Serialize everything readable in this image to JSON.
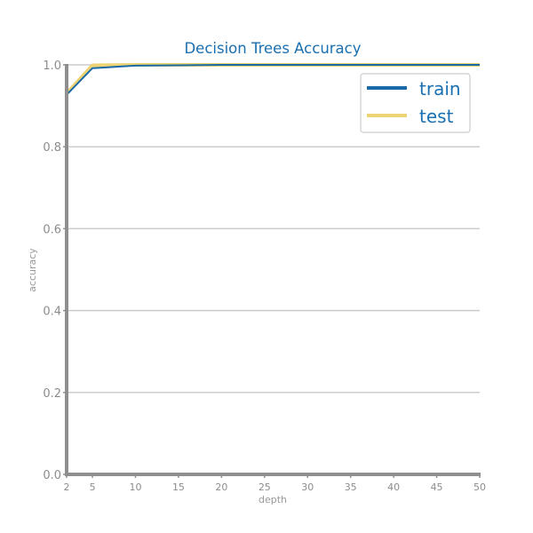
{
  "chart_data": {
    "type": "line",
    "title": "Decision Trees Accuracy",
    "xlabel": "depth",
    "ylabel": "accuracy",
    "xlim": [
      2,
      50
    ],
    "ylim": [
      0.0,
      1.0
    ],
    "xticks": [
      2,
      5,
      10,
      15,
      20,
      25,
      30,
      35,
      40,
      45,
      50
    ],
    "yticks": [
      "0.0",
      "0.2",
      "0.4",
      "0.6",
      "0.8",
      "1.0"
    ],
    "grid": "horizontal",
    "legend_position": "top-right",
    "x": [
      2,
      5,
      10,
      15,
      20,
      25,
      30,
      35,
      40,
      45,
      50
    ],
    "series": [
      {
        "name": "train",
        "color": "#1a6aa8",
        "values": [
          0.927,
          0.992,
          0.998,
          0.999,
          1.0,
          1.0,
          1.0,
          1.0,
          1.0,
          1.0,
          1.0
        ]
      },
      {
        "name": "test",
        "color": "#ecd475",
        "values": [
          0.93,
          0.999,
          1.0,
          1.0,
          1.0,
          1.0,
          1.0,
          1.0,
          1.0,
          1.0,
          1.0
        ]
      }
    ]
  }
}
